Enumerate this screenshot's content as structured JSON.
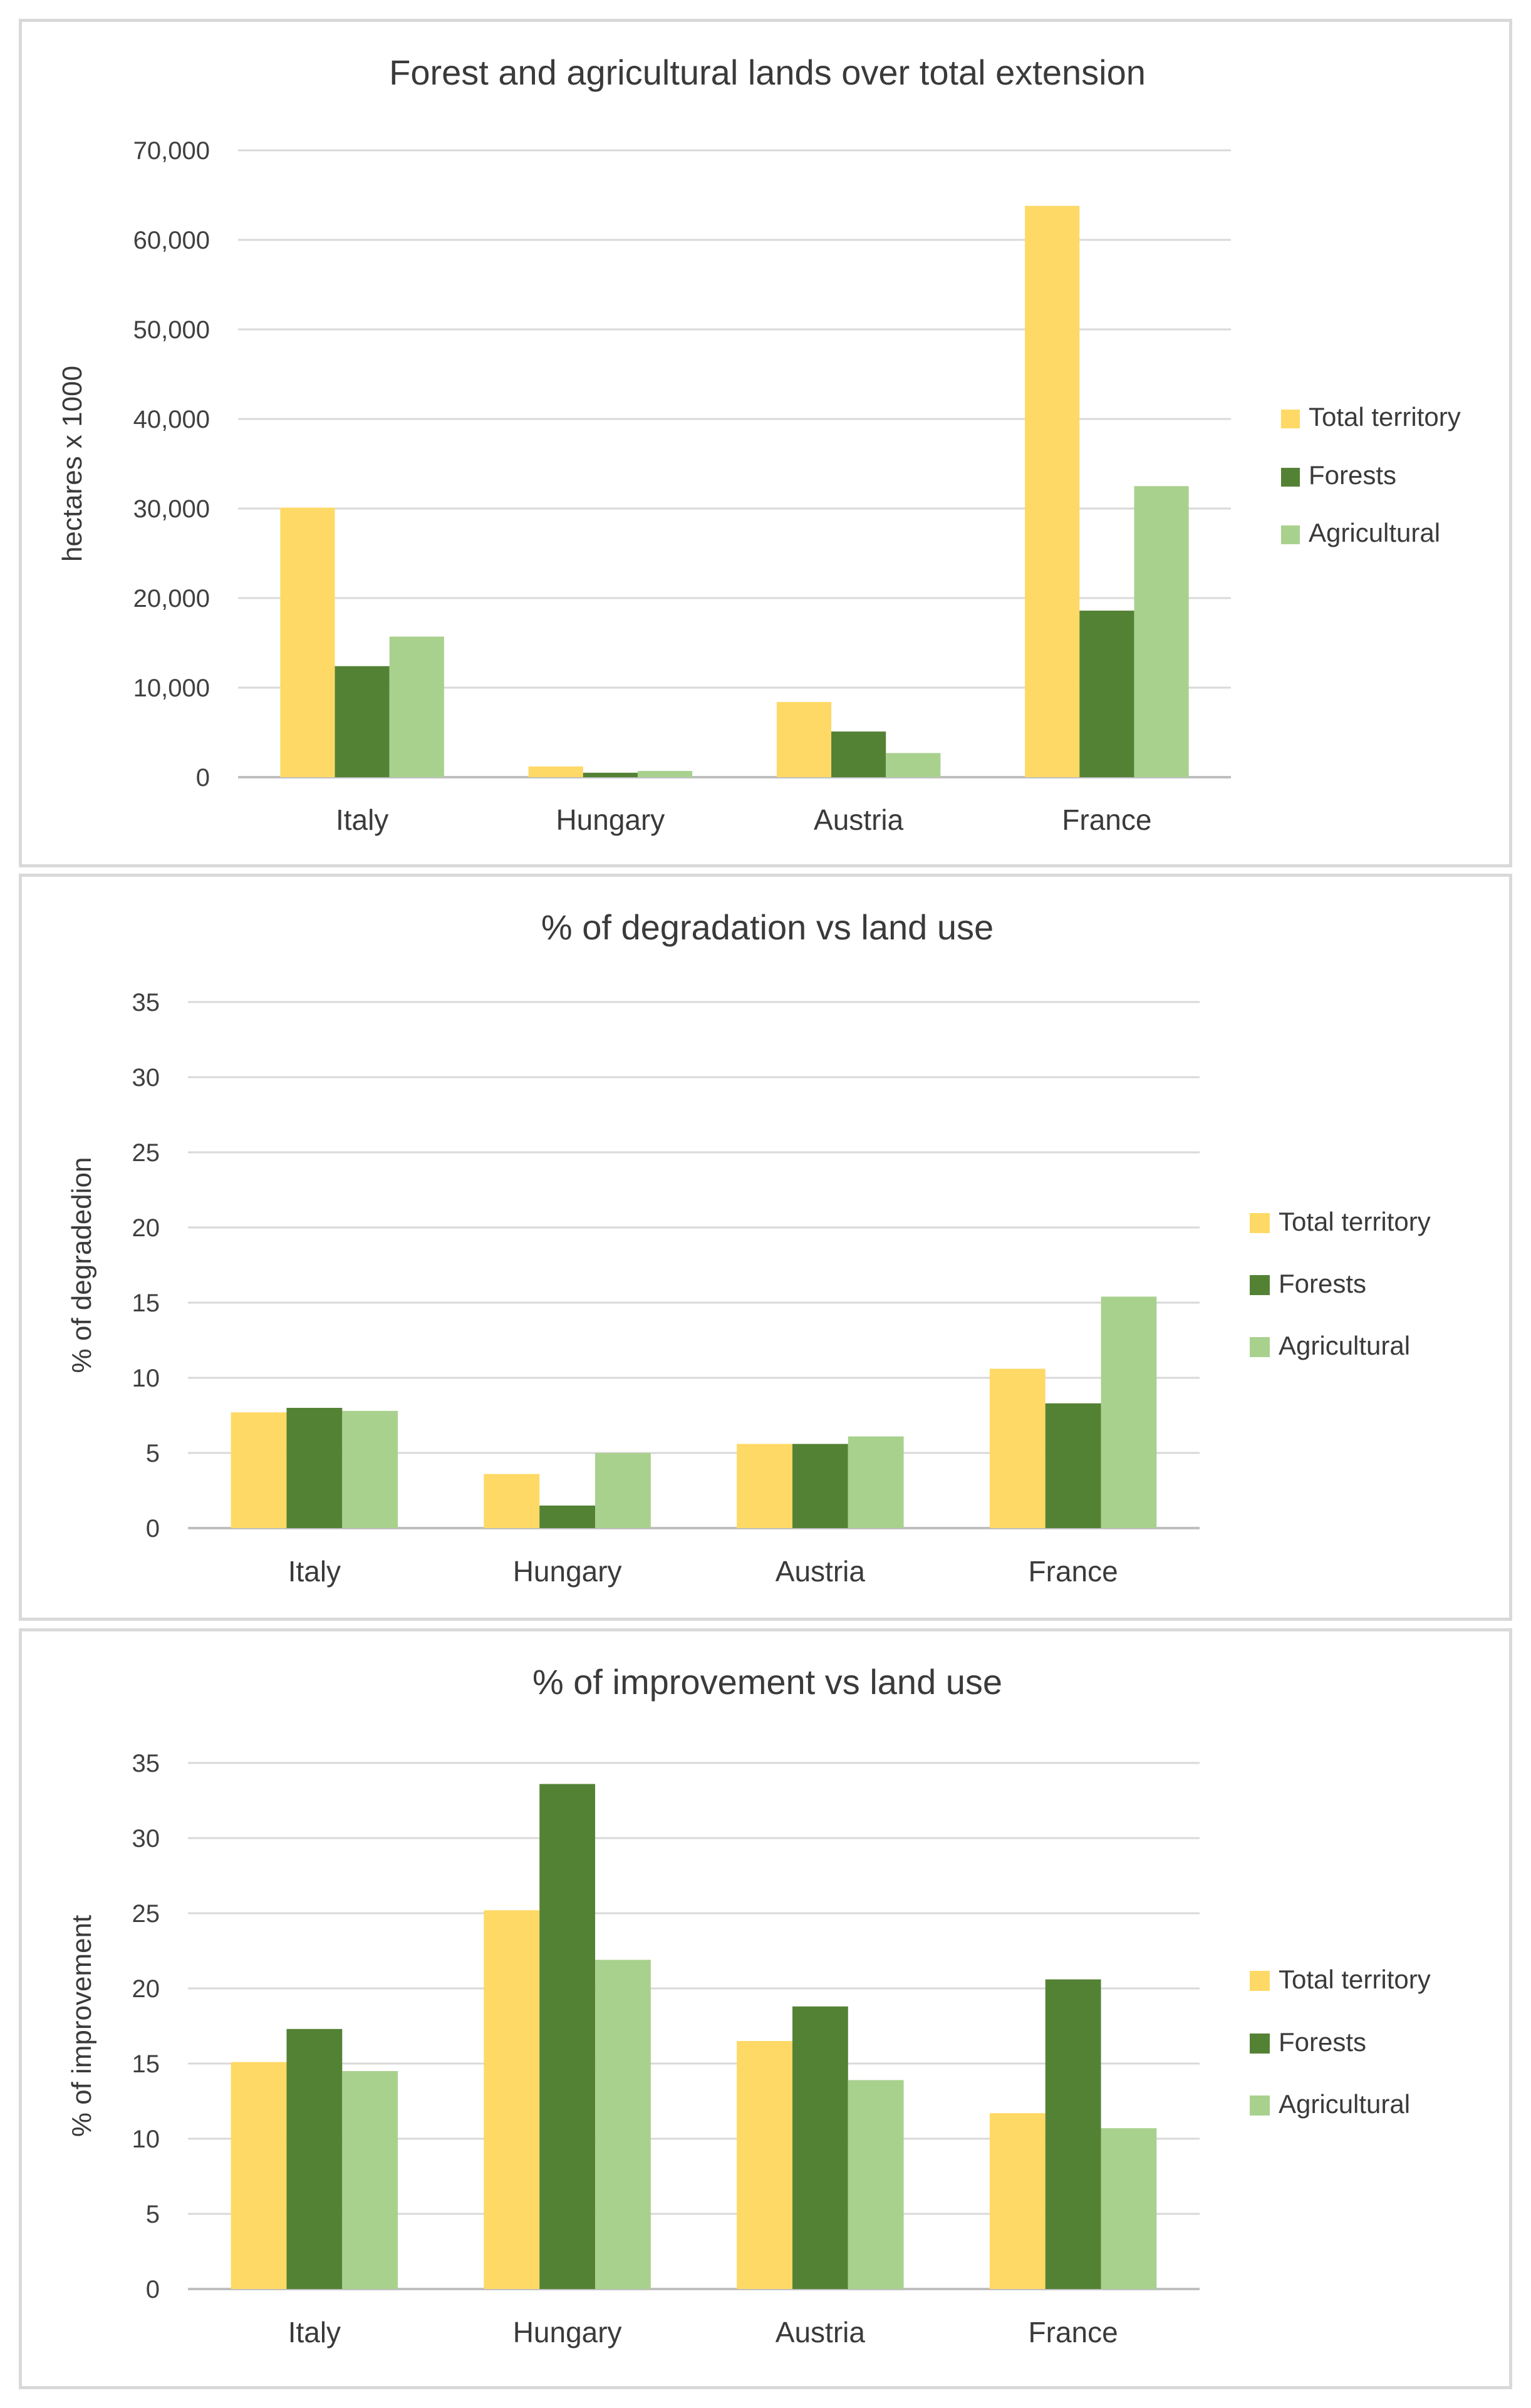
{
  "colors": {
    "total": "#FFD966",
    "forests": "#548235",
    "agricultural": "#A9D18E",
    "grid": "#d9d9d9",
    "axis": "#bfbfbf"
  },
  "chart_data": [
    {
      "type": "bar",
      "title": "Forest and agricultural lands over total extension",
      "xlabel": "",
      "ylabel": "hectares x 1000",
      "categories": [
        "Italy",
        "Hungary",
        "Austria",
        "France"
      ],
      "ylim": [
        0,
        70000
      ],
      "yticks": [
        0,
        10000,
        20000,
        30000,
        40000,
        50000,
        60000,
        70000
      ],
      "ytick_labels": [
        "0",
        "10,000",
        "20,000",
        "30,000",
        "40,000",
        "50,000",
        "60,000",
        "70,000"
      ],
      "legend_position": "right",
      "grid": true,
      "series": [
        {
          "name": "Total territory",
          "color_key": "total",
          "values": [
            30100,
            1200,
            8400,
            63800
          ]
        },
        {
          "name": "Forests",
          "color_key": "forests",
          "values": [
            12400,
            500,
            5100,
            18600
          ]
        },
        {
          "name": "Agricultural",
          "color_key": "agricultural",
          "values": [
            15700,
            700,
            2700,
            32500
          ]
        }
      ]
    },
    {
      "type": "bar",
      "title": "% of degradation vs land use",
      "xlabel": "",
      "ylabel": "% of degradedion",
      "categories": [
        "Italy",
        "Hungary",
        "Austria",
        "France"
      ],
      "ylim": [
        0,
        35
      ],
      "yticks": [
        0,
        5,
        10,
        15,
        20,
        25,
        30,
        35
      ],
      "ytick_labels": [
        "0",
        "5",
        "10",
        "15",
        "20",
        "25",
        "30",
        "35"
      ],
      "legend_position": "right",
      "grid": true,
      "series": [
        {
          "name": "Total territory",
          "color_key": "total",
          "values": [
            7.7,
            3.6,
            5.6,
            10.6
          ]
        },
        {
          "name": "Forests",
          "color_key": "forests",
          "values": [
            8.0,
            1.5,
            5.6,
            8.3
          ]
        },
        {
          "name": "Agricultural",
          "color_key": "agricultural",
          "values": [
            7.8,
            5.0,
            6.1,
            15.4
          ]
        }
      ]
    },
    {
      "type": "bar",
      "title": "% of improvement vs land use",
      "xlabel": "",
      "ylabel": "% of improvement",
      "categories": [
        "Italy",
        "Hungary",
        "Austria",
        "France"
      ],
      "ylim": [
        0,
        35
      ],
      "yticks": [
        0,
        5,
        10,
        15,
        20,
        25,
        30,
        35
      ],
      "ytick_labels": [
        "0",
        "5",
        "10",
        "15",
        "20",
        "25",
        "30",
        "35"
      ],
      "legend_position": "right",
      "grid": true,
      "series": [
        {
          "name": "Total territory",
          "color_key": "total",
          "values": [
            15.1,
            25.2,
            16.5,
            11.7
          ]
        },
        {
          "name": "Forests",
          "color_key": "forests",
          "values": [
            17.3,
            33.6,
            18.8,
            20.6
          ]
        },
        {
          "name": "Agricultural",
          "color_key": "agricultural",
          "values": [
            14.5,
            21.9,
            13.9,
            10.7
          ]
        }
      ]
    }
  ]
}
